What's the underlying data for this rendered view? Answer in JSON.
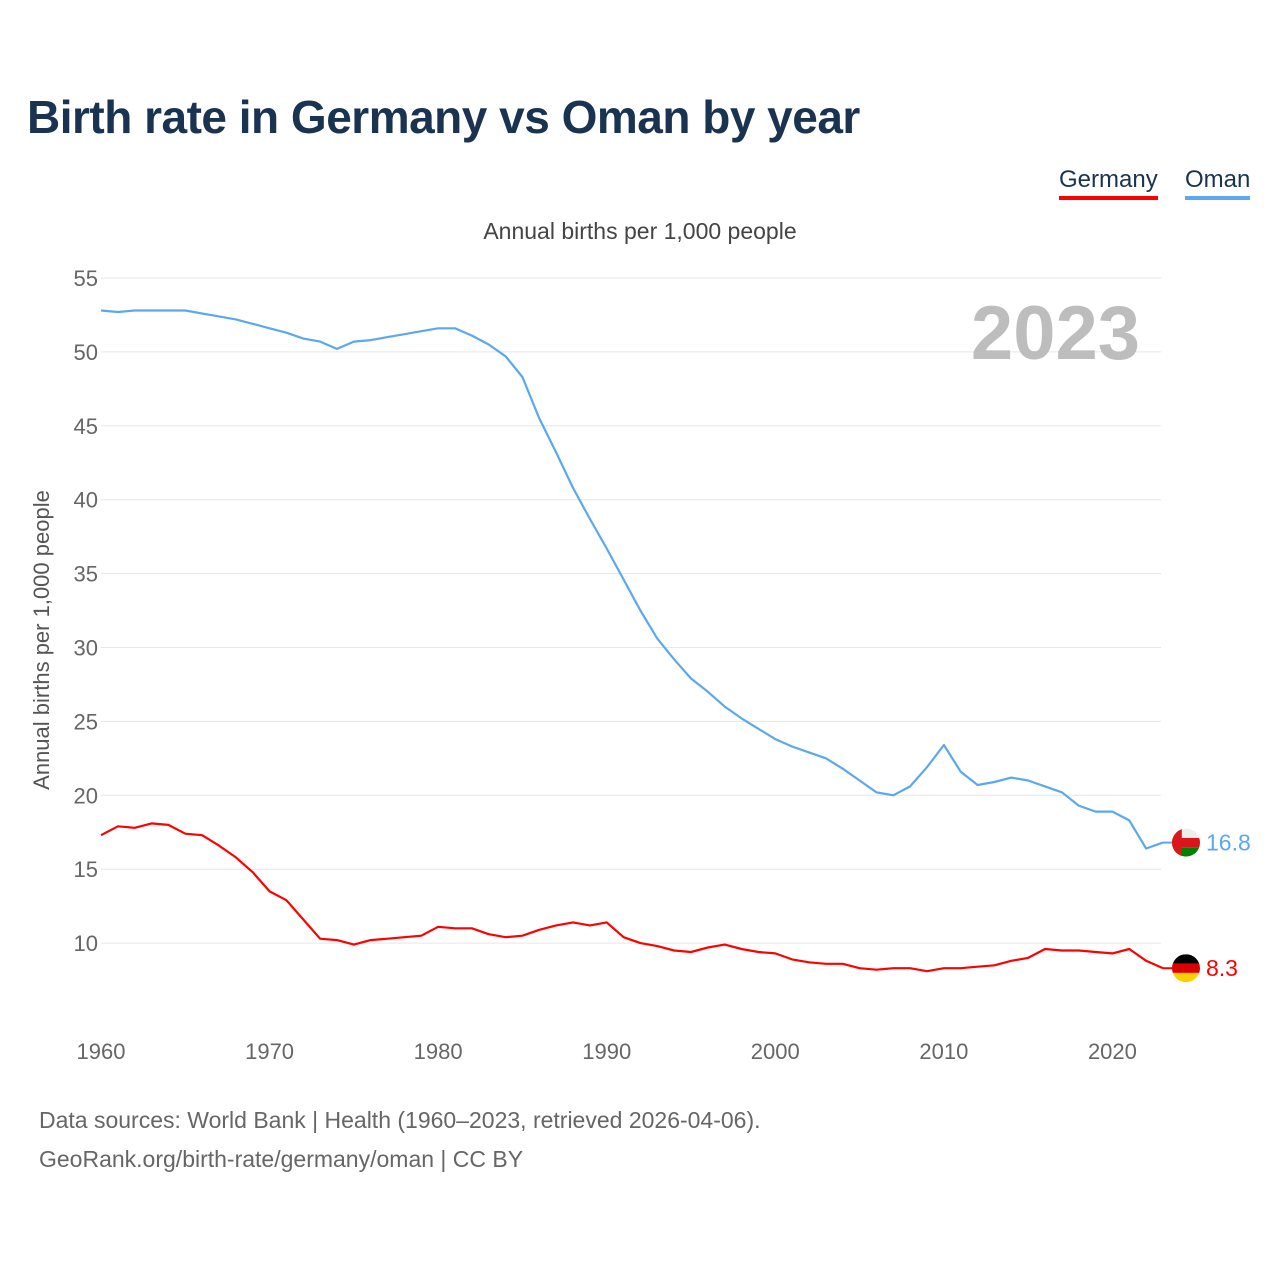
{
  "title": "Birth rate in Germany vs Oman by year",
  "legend": [
    {
      "label": "Germany",
      "color": "#ff0000"
    },
    {
      "label": "Oman",
      "color": "#5ba8ee"
    }
  ],
  "year_label": "2023",
  "footer": {
    "line1": "Data sources: World Bank | Health (1960–2023, retrieved 2026-04-06).",
    "line2": "GeoRank.org/birth-rate/germany/oman | CC BY"
  },
  "chart_data": {
    "type": "line",
    "title": "Birth rate in Germany vs Oman by year",
    "subtitle": "Annual births per 1,000 people",
    "xlabel": "",
    "ylabel": "Annual births per 1,000 people",
    "xlim": [
      1960,
      2023
    ],
    "ylim": [
      5,
      55
    ],
    "x_ticks": [
      1960,
      1970,
      1980,
      1990,
      2000,
      2010,
      2020
    ],
    "y_ticks": [
      10,
      15,
      20,
      25,
      30,
      35,
      40,
      45,
      50,
      55
    ],
    "grid": true,
    "legend_position": "top-right",
    "x_start": 1960,
    "series": [
      {
        "name": "Germany",
        "color": "#ff0000",
        "end_label": "8.3",
        "flag": "germany-flag",
        "values": [
          17.3,
          17.9,
          17.8,
          18.1,
          18.0,
          17.4,
          17.3,
          16.6,
          15.8,
          14.8,
          13.5,
          12.9,
          11.6,
          10.3,
          10.2,
          9.9,
          10.2,
          10.3,
          10.4,
          10.5,
          11.1,
          11.0,
          11.0,
          10.6,
          10.4,
          10.5,
          10.9,
          11.2,
          11.4,
          11.2,
          11.4,
          10.4,
          10.0,
          9.8,
          9.5,
          9.4,
          9.7,
          9.9,
          9.6,
          9.4,
          9.3,
          8.9,
          8.7,
          8.6,
          8.6,
          8.3,
          8.2,
          8.3,
          8.3,
          8.1,
          8.3,
          8.3,
          8.4,
          8.5,
          8.8,
          9.0,
          9.6,
          9.5,
          9.5,
          9.4,
          9.3,
          9.6,
          8.8,
          8.3
        ]
      },
      {
        "name": "Oman",
        "color": "#5ba8ee",
        "end_label": "16.8",
        "flag": "oman-flag",
        "values": [
          52.8,
          52.7,
          52.8,
          52.8,
          52.8,
          52.8,
          52.6,
          52.4,
          52.2,
          51.9,
          51.6,
          51.3,
          50.9,
          50.7,
          50.2,
          50.7,
          50.8,
          51.0,
          51.2,
          51.4,
          51.6,
          51.6,
          51.1,
          50.5,
          49.7,
          48.3,
          45.5,
          43.2,
          40.8,
          38.7,
          36.7,
          34.6,
          32.5,
          30.6,
          29.2,
          27.9,
          27.0,
          26.0,
          25.2,
          24.5,
          23.8,
          23.3,
          22.9,
          22.5,
          21.8,
          21.0,
          20.2,
          20.0,
          20.6,
          21.9,
          23.4,
          21.6,
          20.7,
          20.9,
          21.2,
          21.0,
          20.6,
          20.2,
          19.3,
          18.9,
          18.9,
          18.3,
          16.4,
          16.8
        ]
      }
    ]
  }
}
